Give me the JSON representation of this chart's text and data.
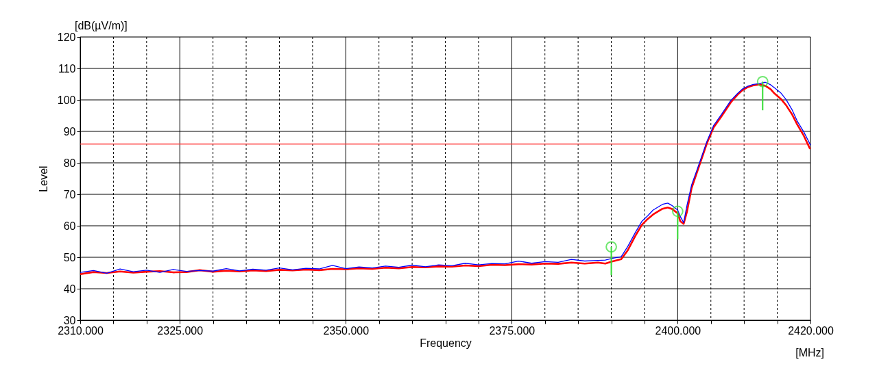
{
  "chart_data": {
    "type": "line",
    "xlabel": "Frequency",
    "ylabel": "Level",
    "annotations": [
      "[dB(µV/m)]",
      "[MHz]"
    ],
    "xlim": [
      2310,
      2420
    ],
    "ylim": [
      30,
      120
    ],
    "xticks": [
      {
        "value": 2310,
        "label": "2310.000"
      },
      {
        "value": 2315,
        "label": null
      },
      {
        "value": 2320,
        "label": null
      },
      {
        "value": 2325,
        "label": "2325.000"
      },
      {
        "value": 2330,
        "label": null
      },
      {
        "value": 2335,
        "label": null
      },
      {
        "value": 2340,
        "label": null
      },
      {
        "value": 2345,
        "label": null
      },
      {
        "value": 2350,
        "label": "2350.000"
      },
      {
        "value": 2355,
        "label": null
      },
      {
        "value": 2360,
        "label": null
      },
      {
        "value": 2365,
        "label": null
      },
      {
        "value": 2370,
        "label": null
      },
      {
        "value": 2375,
        "label": "2375.000"
      },
      {
        "value": 2380,
        "label": null
      },
      {
        "value": 2385,
        "label": null
      },
      {
        "value": 2390,
        "label": null
      },
      {
        "value": 2395,
        "label": null
      },
      {
        "value": 2400,
        "label": "2400.000"
      },
      {
        "value": 2405,
        "label": null
      },
      {
        "value": 2410,
        "label": null
      },
      {
        "value": 2415,
        "label": null
      },
      {
        "value": 2420,
        "label": "2420.000"
      }
    ],
    "yticks": [
      30,
      40,
      50,
      60,
      70,
      80,
      90,
      100,
      110,
      120
    ],
    "grid": true,
    "line_style": "solid",
    "marker": "none",
    "ref_lines": [
      {
        "axis": "y",
        "value": 86,
        "label": null,
        "color": "#ff3b3b"
      }
    ],
    "series": [
      {
        "color": "#ff0000",
        "x": [
          2310,
          2312,
          2314,
          2316,
          2318,
          2320,
          2322,
          2324,
          2326,
          2328,
          2330,
          2332,
          2334,
          2336,
          2338,
          2340,
          2342,
          2344,
          2346,
          2348,
          2350,
          2352,
          2354,
          2356,
          2358,
          2360,
          2362,
          2364,
          2366,
          2368,
          2370,
          2372,
          2374,
          2376,
          2378,
          2380,
          2382,
          2384,
          2386,
          2388,
          2389.1,
          2390,
          2391.5,
          2392.5,
          2393.6,
          2394.6,
          2395.5,
          2396.3,
          2397.7,
          2398.5,
          2399.1,
          2400,
          2400.4,
          2400.9,
          2401.4,
          2402.1,
          2403.2,
          2404.4,
          2405.4,
          2406.6,
          2408,
          2409,
          2409.7,
          2410.5,
          2411.4,
          2412.3,
          2413.2,
          2414,
          2414.6,
          2415.5,
          2416.3,
          2417.2,
          2418,
          2419,
          2419.9,
          2420
        ],
        "values": [
          44.6,
          45.3,
          45.0,
          45.5,
          45.1,
          45.4,
          45.6,
          45.2,
          45.3,
          45.9,
          45.4,
          45.7,
          45.5,
          45.8,
          45.6,
          46.0,
          45.8,
          46.1,
          45.9,
          46.3,
          46.2,
          46.5,
          46.3,
          46.7,
          46.5,
          46.9,
          46.8,
          47.1,
          47.0,
          47.4,
          47.2,
          47.6,
          47.5,
          47.8,
          47.7,
          48.0,
          47.9,
          48.3,
          48.0,
          48.3,
          48.0,
          48.6,
          49.4,
          52.3,
          56.7,
          60.3,
          62.2,
          63.6,
          65.4,
          65.8,
          65.4,
          64.0,
          61.4,
          60.6,
          64.5,
          72.0,
          78.8,
          86.2,
          91.2,
          94.8,
          99.2,
          101.6,
          103.0,
          104.0,
          104.6,
          104.9,
          104.5,
          103.4,
          102.0,
          100.4,
          98.4,
          95.5,
          92.2,
          88.6,
          84.6,
          84.8
        ]
      },
      {
        "color": "#0000ff",
        "x": [
          2310,
          2312,
          2314,
          2316,
          2318,
          2320,
          2322,
          2324,
          2326,
          2328,
          2330,
          2332,
          2334,
          2336,
          2338,
          2340,
          2342,
          2344,
          2346,
          2348,
          2350,
          2352,
          2354,
          2356,
          2358,
          2360,
          2362,
          2364,
          2366,
          2368,
          2370,
          2372,
          2374,
          2376,
          2378,
          2380,
          2382,
          2384,
          2386,
          2388,
          2389.1,
          2390,
          2391.5,
          2392.5,
          2393.6,
          2394.6,
          2395.5,
          2396.3,
          2397.7,
          2398.5,
          2399.1,
          2400,
          2400.4,
          2400.9,
          2401.4,
          2402.1,
          2403.2,
          2404.4,
          2405.4,
          2406.6,
          2408,
          2409,
          2409.7,
          2410.5,
          2411.4,
          2412.3,
          2413.2,
          2414,
          2414.6,
          2415.5,
          2416.3,
          2417.2,
          2418,
          2419,
          2419.9,
          2420
        ],
        "values": [
          45.2,
          45.8,
          44.9,
          46.3,
          45.4,
          45.9,
          45.2,
          46.1,
          45.5,
          45.8,
          45.6,
          46.4,
          45.7,
          46.2,
          45.9,
          46.6,
          46.0,
          46.5,
          46.3,
          47.4,
          46.4,
          46.9,
          46.6,
          47.2,
          46.8,
          47.5,
          47.0,
          47.6,
          47.3,
          48.1,
          47.6,
          48.0,
          47.9,
          48.8,
          48.1,
          48.6,
          48.4,
          49.3,
          48.8,
          49.0,
          49.1,
          49.6,
          50.2,
          53.5,
          57.8,
          61.4,
          63.2,
          65.0,
          66.8,
          67.2,
          66.5,
          65.0,
          62.9,
          61.0,
          66.5,
          73.0,
          79.5,
          86.8,
          91.8,
          95.4,
          99.8,
          102.0,
          103.4,
          104.3,
          104.9,
          105.2,
          105.6,
          104.8,
          103.8,
          102.3,
          100.2,
          97.0,
          93.3,
          89.8,
          86.1,
          85.6
        ]
      },
      {
        "type": "scatter",
        "marker": "circle",
        "color": "#33dd33",
        "x": [
          2390,
          2400,
          2412.8
        ],
        "values": [
          53.3,
          64.6,
          105.8
        ],
        "errors": [
          [
            44.3,
            53.3
          ],
          [
            55.7,
            64.6
          ],
          [
            96.7,
            105.8
          ]
        ]
      }
    ]
  }
}
